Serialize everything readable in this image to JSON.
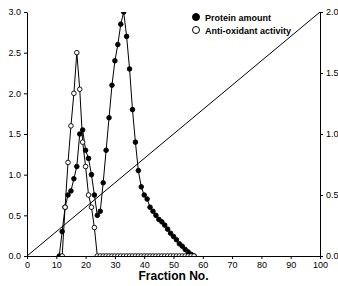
{
  "chart_data": {
    "type": "line",
    "x_label": "Fraction No.",
    "x": [
      11,
      12,
      13,
      14,
      15,
      16,
      17,
      18,
      19,
      20,
      21,
      22,
      23,
      24,
      25,
      26,
      27,
      28,
      29,
      30,
      31,
      32,
      33,
      34,
      35,
      36,
      37,
      38,
      39,
      40,
      41,
      42,
      43,
      44,
      45,
      46,
      47,
      48,
      49,
      50,
      51,
      52,
      53,
      54,
      55,
      56,
      57
    ],
    "series": [
      {
        "name": "Protein amount",
        "color": "#000000",
        "marker": "circle-filled",
        "values": [
          0,
          0.3,
          0.6,
          0.75,
          0.8,
          0.95,
          1.1,
          1.5,
          1.55,
          1.3,
          1.2,
          1.0,
          0.75,
          0.5,
          0.55,
          0.9,
          1.3,
          1.7,
          2.1,
          2.4,
          2.6,
          2.85,
          3.0,
          2.7,
          2.3,
          1.8,
          1.4,
          1.05,
          0.85,
          0.75,
          0.7,
          0.6,
          0.55,
          0.5,
          0.45,
          0.42,
          0.38,
          0.33,
          0.28,
          0.24,
          0.2,
          0.15,
          0.12,
          0.08,
          0.05,
          0.02,
          0
        ]
      },
      {
        "name": "Anti-oxidant activity",
        "color": "#000000",
        "marker": "circle-open",
        "values": [
          null,
          0,
          0.6,
          1.15,
          1.6,
          2.0,
          2.5,
          2.05,
          1.4,
          1.1,
          0.75,
          0.6,
          0.35,
          0,
          0,
          0,
          0,
          0,
          0,
          0,
          0,
          0,
          0,
          0,
          0,
          0,
          0,
          0,
          0,
          0,
          0,
          0,
          0,
          0,
          0,
          0,
          0,
          0,
          0,
          0,
          0,
          0,
          0,
          0,
          0,
          0,
          0
        ]
      },
      {
        "color": "#000000",
        "marker": "none",
        "axis": "y2",
        "x": [
          0,
          100
        ],
        "values": [
          0,
          2.0
        ]
      }
    ],
    "xlim": [
      0,
      100
    ],
    "xticks": [
      0,
      10,
      20,
      30,
      40,
      50,
      60,
      70,
      80,
      90,
      100
    ],
    "ylim": [
      0,
      3.0
    ],
    "yticks": [
      {
        "value": 0,
        "label": "0.0"
      },
      {
        "value": 0.5,
        "label": "0.5"
      },
      {
        "value": 1.0,
        "label": "1.0"
      },
      {
        "value": 1.5,
        "label": "1.5"
      },
      {
        "value": 2.0,
        "label": "2.0"
      },
      {
        "value": 2.5,
        "label": "2.5"
      },
      {
        "value": 3.0,
        "label": "3.0"
      }
    ],
    "y2lim": [
      0,
      2.0
    ],
    "y2ticks": [
      {
        "value": 0,
        "label": "0.0"
      },
      {
        "value": 0.5,
        "label": "0.5"
      },
      {
        "value": 1.0,
        "label": "1.0"
      },
      {
        "value": 1.5,
        "label": "1.5"
      },
      {
        "value": 2.0,
        "label": "2.0"
      }
    ],
    "legend": "top-right"
  }
}
